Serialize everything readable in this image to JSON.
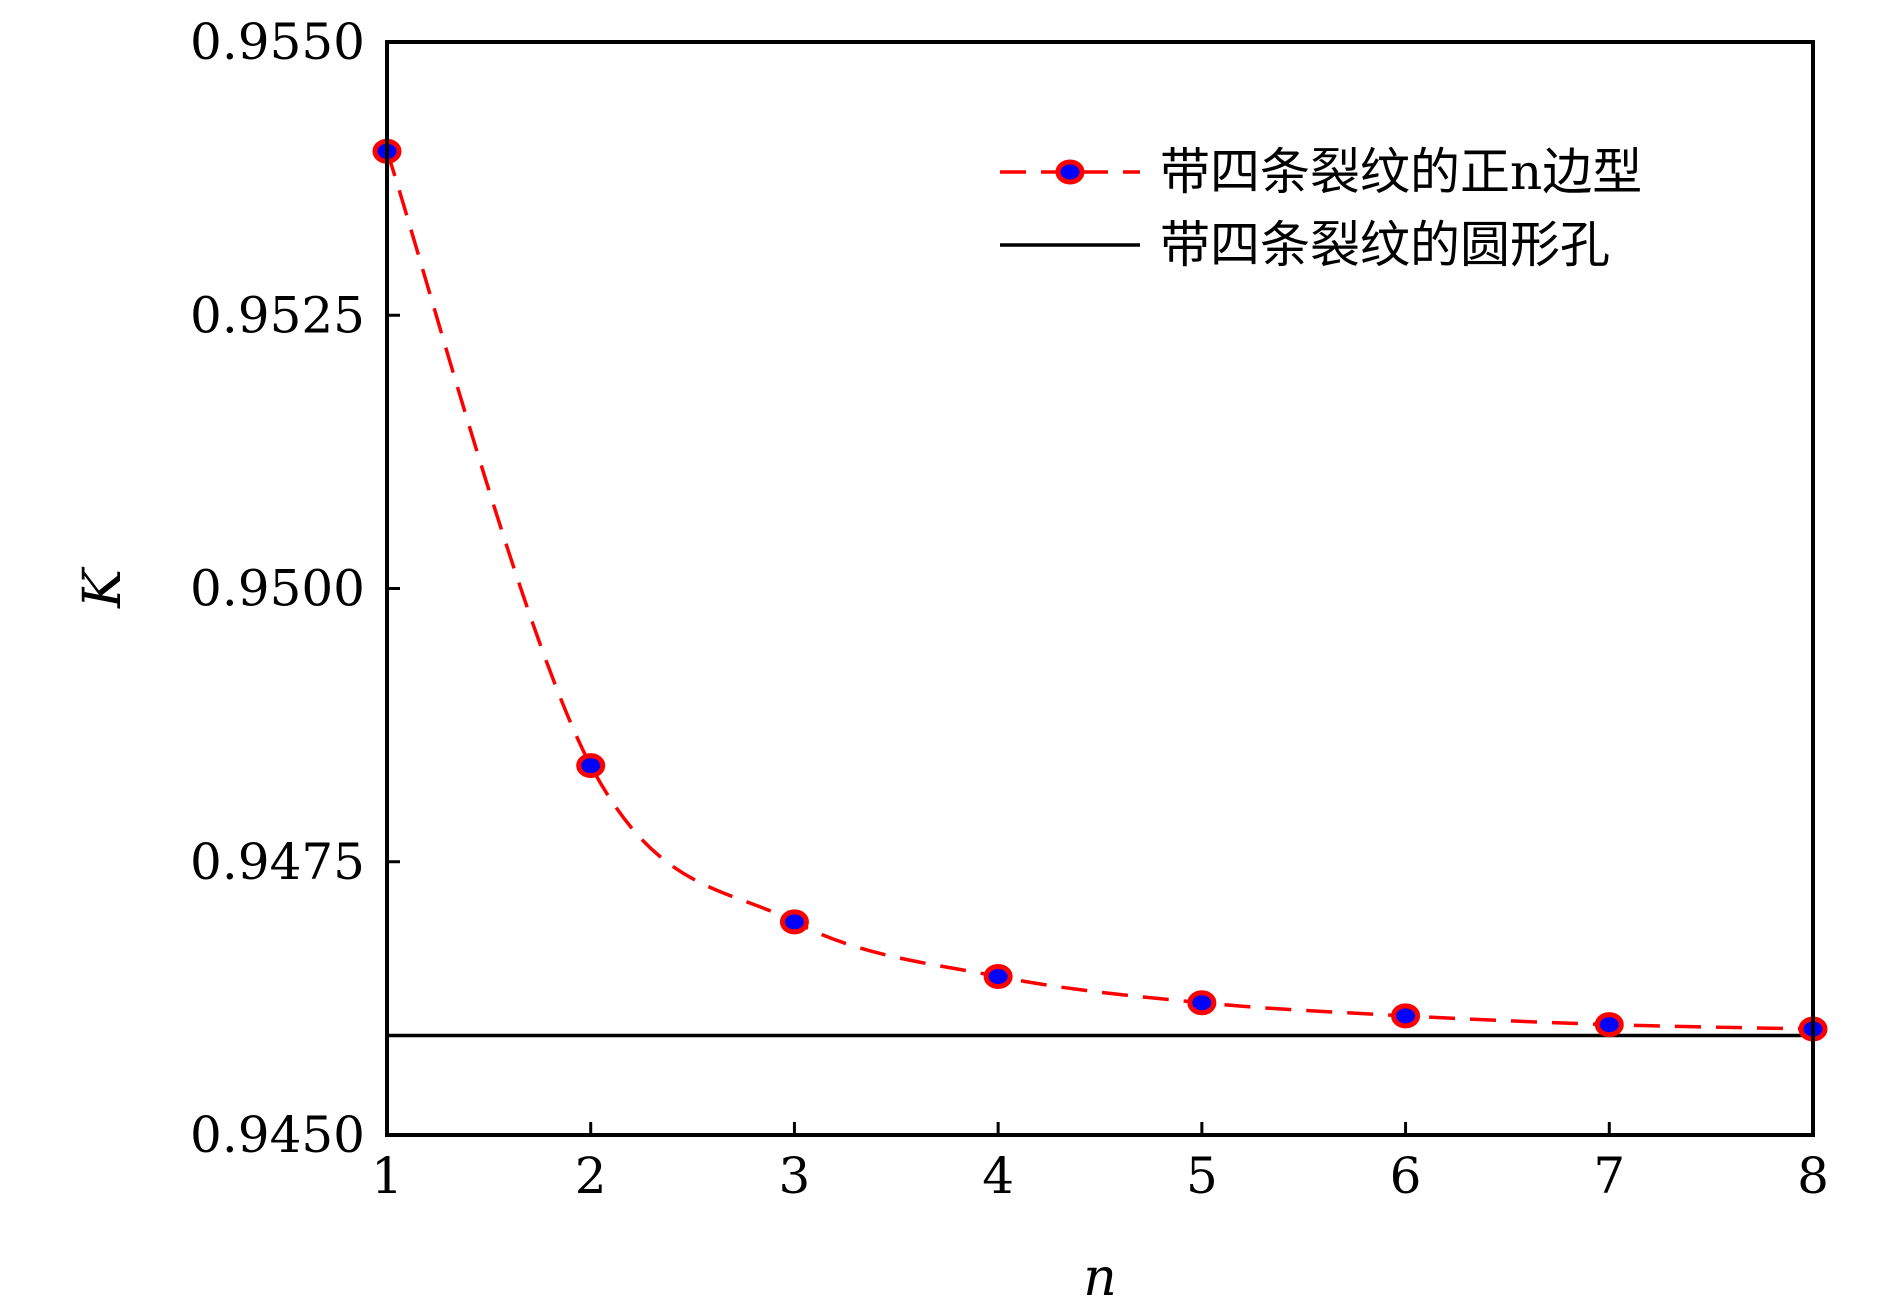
{
  "chart_data": {
    "type": "line",
    "title": "",
    "xlabel": "n",
    "ylabel": "K",
    "xlim": [
      1,
      8
    ],
    "ylim": [
      0.945,
      0.955
    ],
    "x_ticks": [
      1,
      2,
      3,
      4,
      5,
      6,
      7,
      8
    ],
    "x_tick_labels": [
      "1",
      "2",
      "3",
      "4",
      "5",
      "6",
      "7",
      "8"
    ],
    "y_ticks": [
      0.945,
      0.9475,
      0.95,
      0.9525,
      0.955
    ],
    "y_tick_labels": [
      "0.9450",
      "0.9475",
      "0.9500",
      "0.9525",
      "0.9550"
    ],
    "grid": false,
    "legend_position": "top-right",
    "series": [
      {
        "name": "带四条裂纹的正n边型",
        "style": "dashed-line-with-circle-markers",
        "line_color": "#ff0000",
        "marker_edge_color": "#ff0000",
        "marker_face_color": "#0000ff",
        "x": [
          1,
          2,
          3,
          4,
          5,
          6,
          7,
          8
        ],
        "y": [
          0.954,
          0.94838,
          0.94695,
          0.94645,
          0.94621,
          0.94609,
          0.94601,
          0.94597
        ]
      },
      {
        "name": "带四条裂纹的圆形孔",
        "style": "solid-horizontal-line",
        "line_color": "#000000",
        "y": 0.94591
      }
    ]
  }
}
